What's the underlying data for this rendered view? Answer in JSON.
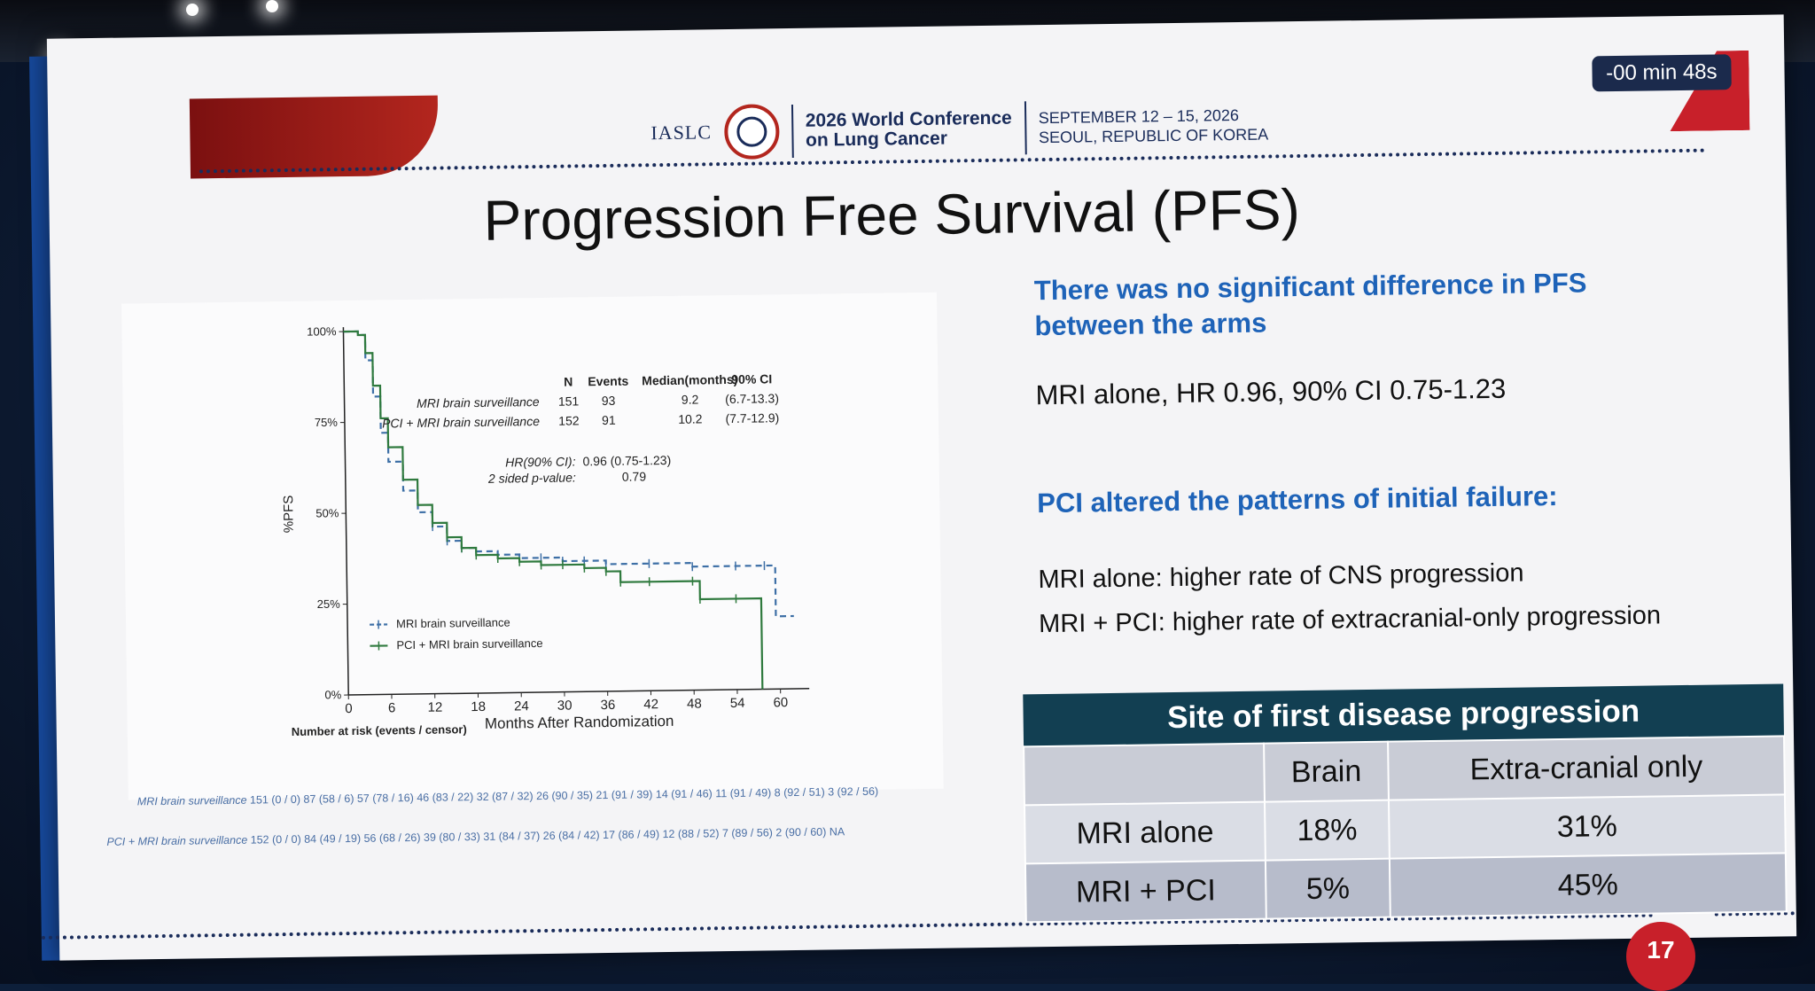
{
  "header": {
    "org": "IASLC",
    "conference_line1": "2026 World Conference",
    "conference_line2": "on Lung Cancer",
    "dates_line1": "SEPTEMBER 12 – 15, 2026",
    "dates_line2": "SEOUL, REPUBLIC OF KOREA",
    "timer": "-00 min 48s"
  },
  "slide": {
    "title": "Progression Free Survival (PFS)",
    "point1_line1": "There was no significant difference in PFS",
    "point1_line2": "between the arms",
    "hr_text": "MRI alone, HR 0.96, 90% CI 0.75-1.23",
    "point2": "PCI altered the patterns of initial failure:",
    "failure1": "MRI alone: higher rate of CNS progression",
    "failure2": "MRI + PCI: higher rate of extracranial-only progression",
    "page_number": "17"
  },
  "table": {
    "caption": "Site of first disease progression",
    "headers": [
      "",
      "Brain",
      "Extra-cranial only"
    ],
    "rows": [
      [
        "MRI alone",
        "18%",
        "31%"
      ],
      [
        "MRI + PCI",
        "5%",
        "45%"
      ]
    ]
  },
  "chart_data": {
    "type": "line",
    "title": "",
    "xlabel": "Months After Randomization",
    "ylabel": "%PFS",
    "x_ticks": [
      "0",
      "6",
      "12",
      "18",
      "24",
      "30",
      "36",
      "42",
      "48",
      "54",
      "60"
    ],
    "y_ticks": [
      "0%",
      "25%",
      "50%",
      "75%",
      "100%"
    ],
    "xlim": [
      0,
      64
    ],
    "ylim": [
      0,
      100
    ],
    "legend_placement": "bottom-left",
    "stats_table": {
      "headers": [
        "N",
        "Events",
        "Median(months)",
        "90% CI"
      ],
      "rows": [
        {
          "arm": "MRI brain surveillance",
          "n": "151",
          "events": "93",
          "median": "9.2",
          "ci": "(6.7-13.3)"
        },
        {
          "arm": "PCI + MRI brain surveillance",
          "n": "152",
          "events": "91",
          "median": "10.2",
          "ci": "(7.7-12.9)"
        }
      ]
    },
    "hr_label": "HR(90% CI):",
    "hr_value": "0.96 (0.75-1.23)",
    "p_label": "2 sided p-value:",
    "p_value": "0.79",
    "series": [
      {
        "name": "MRI brain surveillance",
        "color": "#3d6fa6",
        "dashed": true,
        "x": [
          0,
          2,
          3,
          4,
          5,
          6,
          8,
          10,
          12,
          14,
          16,
          18,
          21,
          24,
          27,
          30,
          33,
          36,
          42,
          48,
          54,
          58,
          59.5,
          62
        ],
        "y": [
          100,
          99,
          92,
          82,
          72,
          64,
          56,
          50,
          46,
          42,
          40,
          39,
          38,
          37,
          37,
          36,
          36,
          35,
          35,
          34,
          34,
          34,
          20,
          20
        ]
      },
      {
        "name": "PCI + MRI brain surveillance",
        "color": "#2f7a3e",
        "dashed": false,
        "x": [
          0,
          2,
          3,
          4,
          5,
          6,
          8,
          10,
          12,
          14,
          16,
          18,
          21,
          24,
          27,
          30,
          33,
          36,
          38,
          42,
          48,
          49,
          54,
          57,
          57.5
        ],
        "y": [
          100,
          99,
          94,
          85,
          76,
          68,
          59,
          52,
          47,
          43,
          40,
          38,
          37,
          36,
          35,
          35,
          34,
          33,
          30,
          30,
          30,
          25,
          25,
          25,
          0
        ]
      }
    ],
    "risk_header": "Number at risk (events / censor)",
    "risk_rows": [
      {
        "arm": "MRI brain surveillance",
        "values": [
          "151 (0 / 0)",
          "87 (58 / 6)",
          "57 (78 / 16)",
          "46 (83 / 22)",
          "32 (87 / 32)",
          "26 (90 / 35)",
          "21 (91 / 39)",
          "14 (91 / 46)",
          "11 (91 / 49)",
          "8 (92 / 51)",
          "3 (92 / 56)"
        ]
      },
      {
        "arm": "PCI + MRI brain surveillance",
        "values": [
          "152 (0 / 0)",
          "84 (49 / 19)",
          "56 (68 / 26)",
          "39 (80 / 33)",
          "31 (84 / 37)",
          "26 (84 / 42)",
          "17 (86 / 49)",
          "12 (88 / 52)",
          "7 (89 / 56)",
          "2 (90 / 60)",
          "NA"
        ]
      }
    ]
  }
}
